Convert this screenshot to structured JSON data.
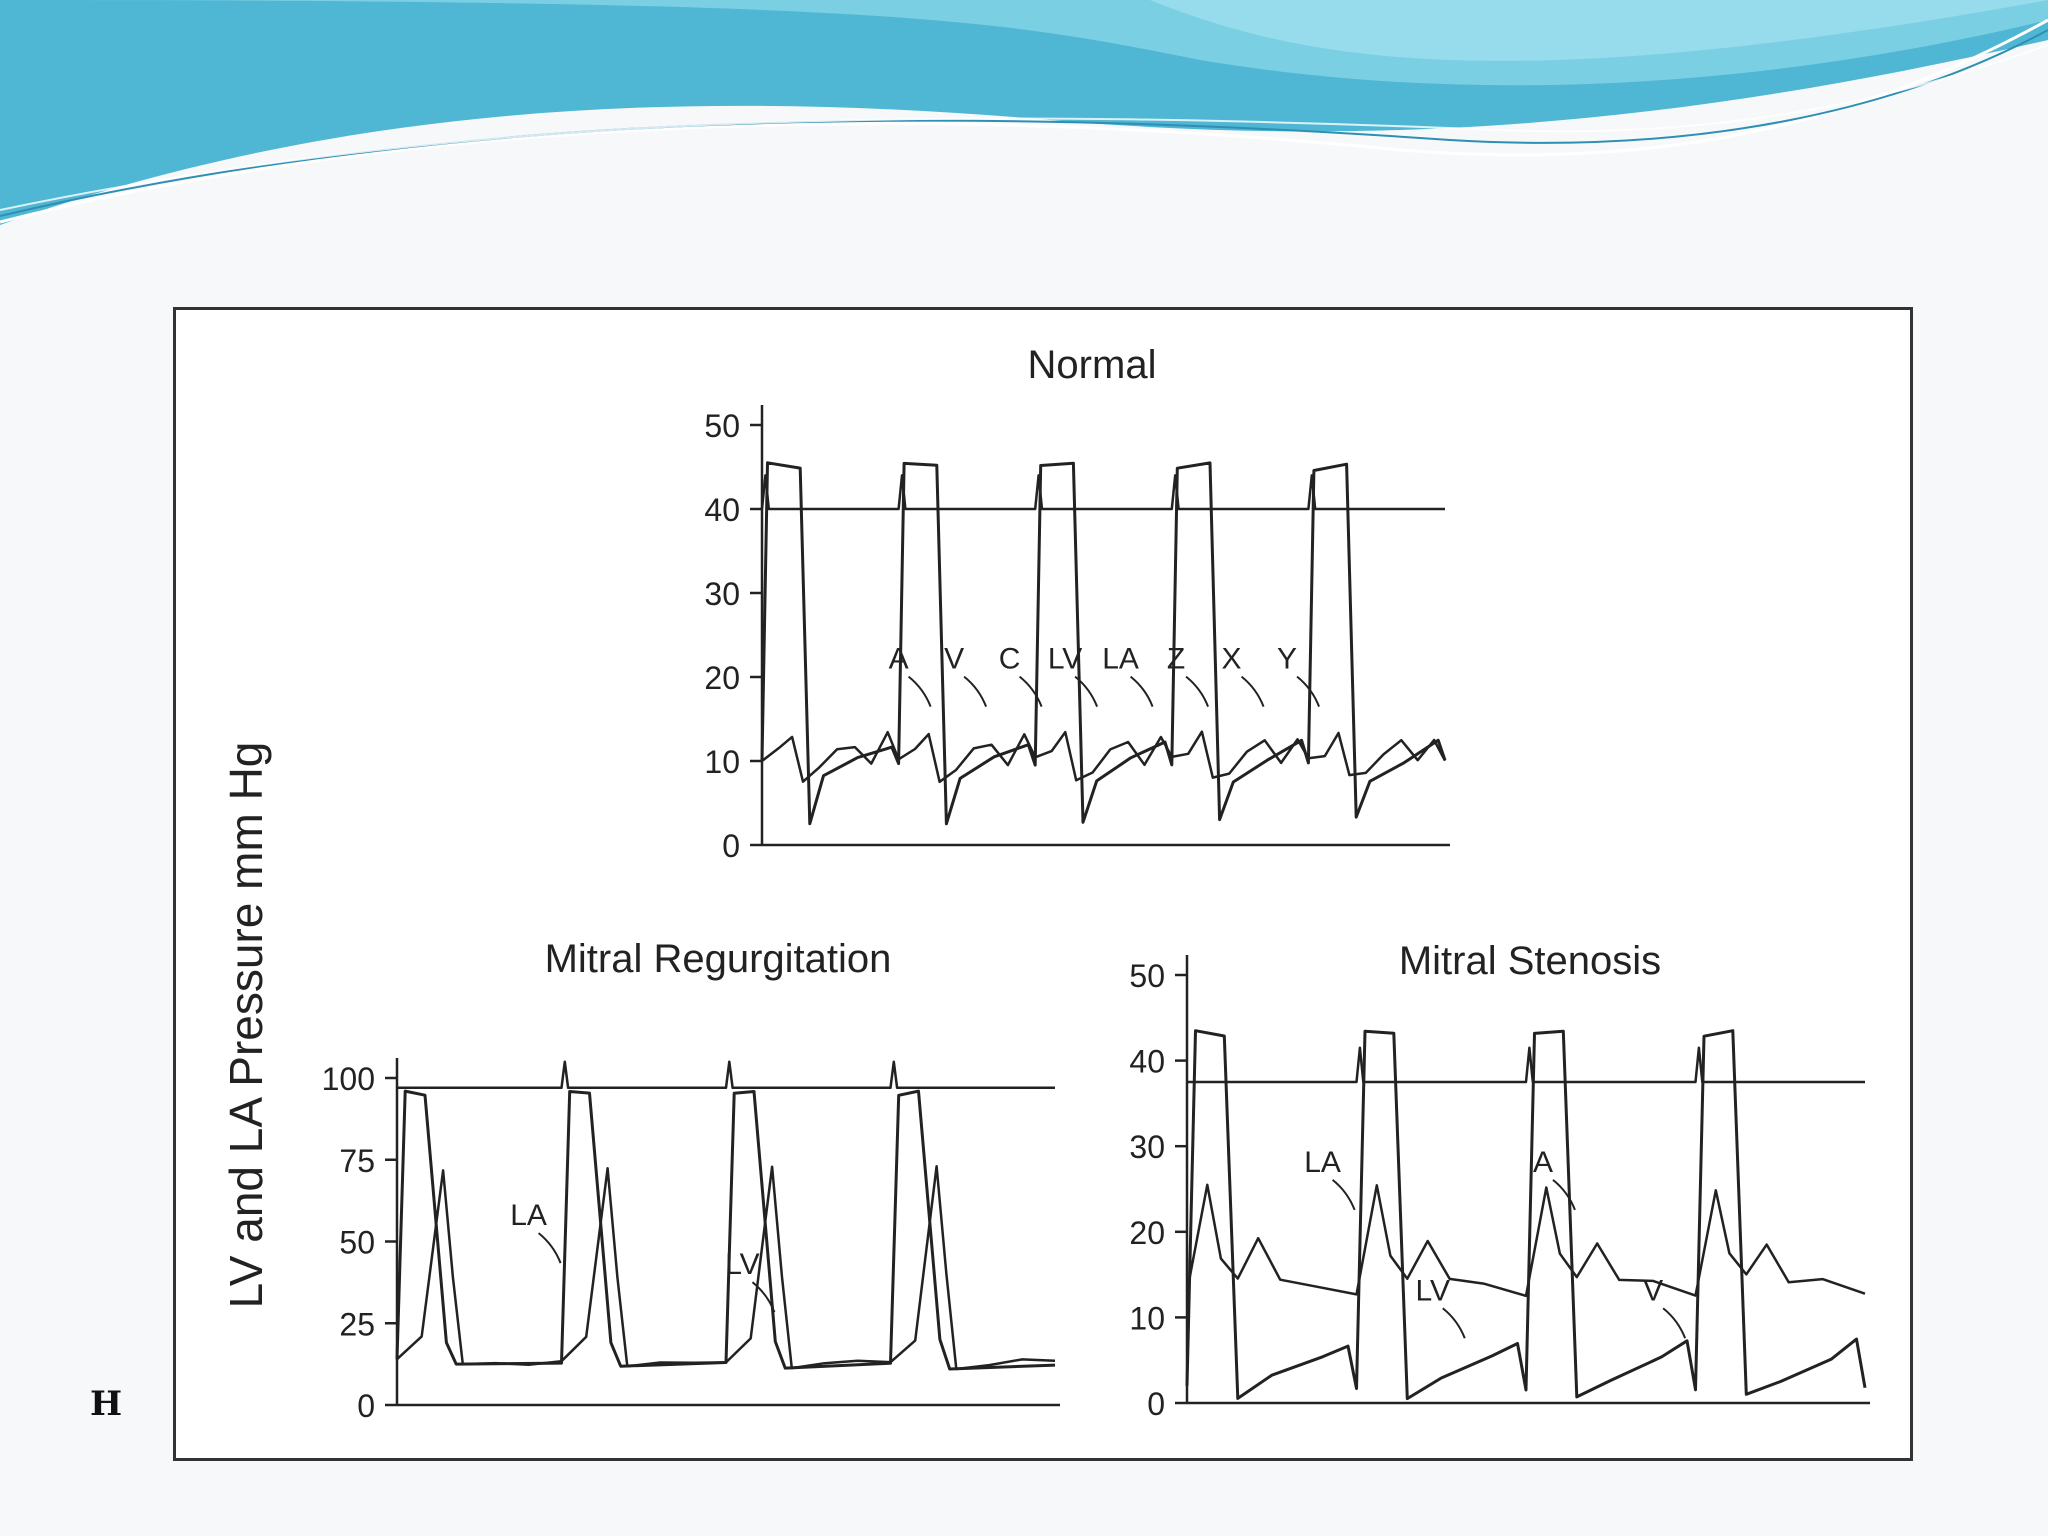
{
  "slide": {
    "corner_mark": "H",
    "colors": {
      "banner_light": "#c9f0f6",
      "banner_mid": "#7fd3e6",
      "banner_dark": "#3aa7c9",
      "ink": "#222222"
    }
  },
  "figure": {
    "y_axis_label": "LV and LA Pressure mm Hg"
  },
  "chart_data": [
    {
      "type": "line",
      "title": "Normal",
      "ylim": [
        0,
        50
      ],
      "yticks": [
        0,
        10,
        20,
        30,
        40,
        50
      ],
      "grid": false,
      "series": [
        {
          "name": "LV",
          "beat_peak": 45,
          "diastolic_min": 2,
          "beats": 5
        },
        {
          "name": "LA",
          "baseline": 10,
          "a_wave": 13,
          "v_wave": 13
        },
        {
          "name": "reference",
          "level": 40
        }
      ],
      "annotations": [
        "A",
        "V",
        "C",
        "LV",
        "LA",
        "Z",
        "X",
        "Y"
      ]
    },
    {
      "type": "line",
      "title": "Mitral Regurgitation",
      "ylim": [
        0,
        100
      ],
      "yticks": [
        0,
        25,
        50,
        75,
        100
      ],
      "grid": false,
      "series": [
        {
          "name": "LV",
          "systolic_peak": 95,
          "diastolic_min": 12,
          "beats": 4
        },
        {
          "name": "LA",
          "v_wave_peak": 72,
          "baseline": 12
        },
        {
          "name": "reference",
          "level": 97
        }
      ],
      "annotations": [
        "LA",
        "LV"
      ]
    },
    {
      "type": "line",
      "title": "Mitral Stenosis",
      "ylim": [
        0,
        50
      ],
      "yticks": [
        0,
        10,
        20,
        30,
        40,
        50
      ],
      "grid": false,
      "series": [
        {
          "name": "LV",
          "beat_peak": 43,
          "diastolic_min": 1,
          "beats": 4
        },
        {
          "name": "LA",
          "a_wave_peak": 25,
          "v_wave_peak": 19,
          "baseline": 13
        },
        {
          "name": "reference",
          "level": 37.5
        }
      ],
      "annotations": [
        "LA",
        "LV",
        "A",
        "V"
      ]
    }
  ]
}
